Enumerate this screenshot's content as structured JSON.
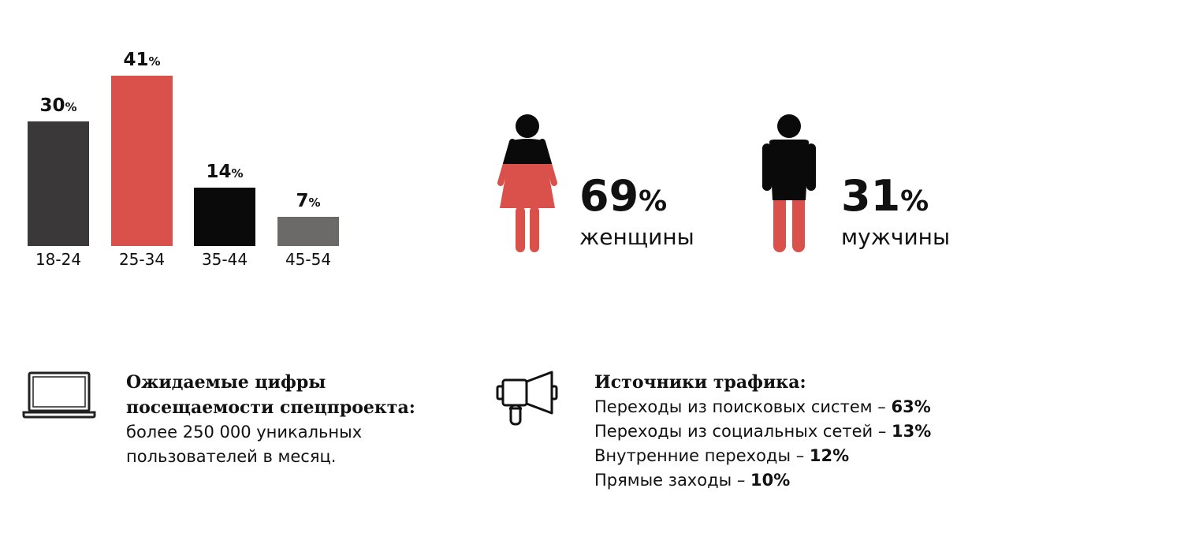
{
  "chart_data": {
    "type": "bar",
    "categories": [
      "18-24",
      "25-34",
      "35-44",
      "45-54"
    ],
    "values": [
      30,
      41,
      14,
      7
    ],
    "value_suffix": "%",
    "colors": [
      "#3a3839",
      "#d9514a",
      "#0a0a0a",
      "#6b6a69"
    ],
    "ylim": [
      0,
      41
    ],
    "grid": false
  },
  "gender": {
    "women": {
      "value": "69",
      "pct": "%",
      "label": "женщины"
    },
    "men": {
      "value": "31",
      "pct": "%",
      "label": "мужчины"
    },
    "colors": {
      "dark": "#0a0a0a",
      "red": "#d9514a"
    }
  },
  "attendance": {
    "title_line1": "Ожидаемые цифры",
    "title_line2": "посещаемости спецпроекта:",
    "text_line1": "более 250 000 уникальных",
    "text_line2": "пользователей в месяц.",
    "icon": "laptop-icon"
  },
  "traffic": {
    "title": "Источники трафика:",
    "icon": "megaphone-icon",
    "items": [
      {
        "label": "Переходы из поисковых систем",
        "sep": " – ",
        "value": "63%"
      },
      {
        "label": "Переходы из социальных сетей",
        "sep": " – ",
        "value": "13%"
      },
      {
        "label": "Внутренние переходы",
        "sep": " – ",
        "value": "12%"
      },
      {
        "label": "Прямые заходы",
        "sep": " – ",
        "value": "10%"
      }
    ]
  }
}
